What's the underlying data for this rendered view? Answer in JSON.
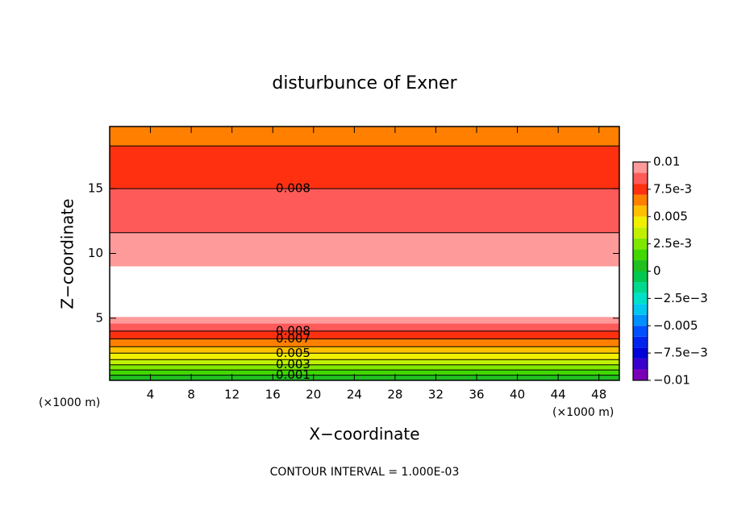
{
  "chart_data": {
    "type": "contour",
    "title": "disturbunce of Exner",
    "x_label": "X−coordinate",
    "y_label": "Z−coordinate",
    "x_unit": "(×1000 m)",
    "y_unit": "(×1000 m)",
    "footer": "CONTOUR INTERVAL = 1.000E-03",
    "xlim": [
      0,
      50
    ],
    "ylim": [
      0.2,
      19.8
    ],
    "xticks": [
      4,
      8,
      12,
      16,
      20,
      24,
      28,
      32,
      36,
      40,
      44,
      48
    ],
    "yticks": [
      5,
      10,
      15
    ],
    "levels": [
      -0.01,
      -0.009,
      -0.008,
      -0.007,
      -0.006,
      -0.005,
      -0.004,
      -0.003,
      -0.002,
      -0.001,
      0,
      0.001,
      0.002,
      0.003,
      0.004,
      0.005,
      0.006,
      0.007,
      0.008,
      0.009,
      0.01
    ],
    "colors": [
      "#7a00b8",
      "#3a00cc",
      "#0000d8",
      "#0024ee",
      "#0050ff",
      "#0090ff",
      "#00c8f0",
      "#00e0c8",
      "#00d890",
      "#00c850",
      "#20c020",
      "#40d800",
      "#80e800",
      "#c0f000",
      "#f0f000",
      "#ffc000",
      "#ff8000",
      "#ff3010",
      "#ff5a5a",
      "#ff9a9a"
    ],
    "colorbar_ticks": [
      0.01,
      {
        "value": 0.0075,
        "label": "7.5e-3"
      },
      0.005,
      {
        "value": 0.0025,
        "label": "2.5e-3"
      },
      0,
      {
        "value": -0.0025,
        "label": "−2.5e−3"
      },
      {
        "value": -0.005,
        "label": "−0.005"
      },
      {
        "value": -0.0075,
        "label": "−7.5e−3"
      },
      {
        "value": -0.01,
        "label": "−0.01"
      }
    ],
    "bands": [
      {
        "zlim": [
          0.2,
          0.6
        ],
        "value": 0.0005
      },
      {
        "zlim": [
          0.6,
          1.0
        ],
        "value": 0.0015
      },
      {
        "zlim": [
          1.0,
          1.4
        ],
        "value": 0.0025
      },
      {
        "zlim": [
          1.4,
          1.8
        ],
        "value": 0.0035
      },
      {
        "zlim": [
          1.8,
          2.3
        ],
        "value": 0.0045
      },
      {
        "zlim": [
          2.3,
          2.8
        ],
        "value": 0.0055
      },
      {
        "zlim": [
          2.8,
          3.4
        ],
        "value": 0.0065
      },
      {
        "zlim": [
          3.4,
          4.0
        ],
        "value": 0.0075
      },
      {
        "zlim": [
          4.0,
          4.6
        ],
        "value": 0.0085
      },
      {
        "zlim": [
          4.6,
          5.1
        ],
        "value": 0.0095
      },
      {
        "zlim": [
          5.1,
          9.0
        ],
        "value": 0.0105
      },
      {
        "zlim": [
          9.0,
          11.6
        ],
        "value": 0.0095
      },
      {
        "zlim": [
          11.6,
          15.0
        ],
        "value": 0.0085
      },
      {
        "zlim": [
          15.0,
          18.3
        ],
        "value": 0.0075
      },
      {
        "zlim": [
          18.3,
          19.8
        ],
        "value": 0.0065
      }
    ],
    "contours": [
      {
        "level": 0.001,
        "z": 0.6,
        "label_x": 18
      },
      {
        "level": 0.002,
        "z": 1.0
      },
      {
        "level": 0.003,
        "z": 1.4,
        "label_x": 18
      },
      {
        "level": 0.004,
        "z": 1.8
      },
      {
        "level": 0.005,
        "z": 2.3,
        "label_x": 18
      },
      {
        "level": 0.006,
        "z": 2.8
      },
      {
        "level": 0.007,
        "z": 3.4,
        "label_x": 18
      },
      {
        "level": 0.008,
        "z": 4.0,
        "label_x": 18
      },
      {
        "level": 0.009,
        "z": 11.6
      },
      {
        "level": 0.008,
        "z": 15.0,
        "label_x": 18
      },
      {
        "level": 0.007,
        "z": 18.3
      }
    ]
  }
}
